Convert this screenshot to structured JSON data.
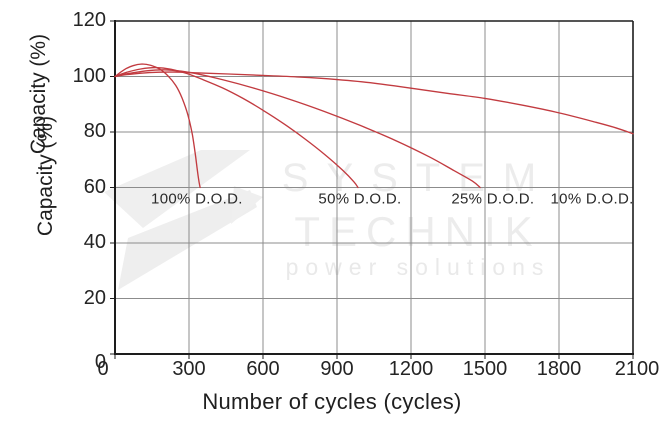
{
  "figure": {
    "background": "#ffffff",
    "watermark": {
      "line1": "SYSTEM",
      "line2": "TECHNIK",
      "line3": "power solutions",
      "logo": "arrow-bolt-logo"
    }
  },
  "chart_data": {
    "type": "line",
    "title": "",
    "xlabel": "Number of cycles (cycles)",
    "ylabel": "Capacity (%)",
    "ylabel_drawn_twice": true,
    "xlim": [
      0,
      2100
    ],
    "ylim": [
      0,
      120
    ],
    "x_ticks": [
      0,
      300,
      600,
      900,
      1200,
      1500,
      1800,
      2100
    ],
    "y_ticks": [
      0,
      20,
      40,
      60,
      80,
      100,
      120
    ],
    "grid": true,
    "legend_position": "inline-annotations",
    "colors": {
      "line": "#c23b40",
      "grid": "#8c8c8c",
      "axis": "#1d1d1d",
      "tick_text": "#242424",
      "annotation_text": "#2a2a2a",
      "watermark": "#ececec"
    },
    "series": [
      {
        "name": "100% D.O.D.",
        "points": [
          [
            0,
            100
          ],
          [
            37,
            102.4
          ],
          [
            73,
            103.9
          ],
          [
            110,
            104.5
          ],
          [
            146,
            104
          ],
          [
            183,
            102.6
          ],
          [
            214,
            100.3
          ],
          [
            246,
            96.8
          ],
          [
            272,
            92.2
          ],
          [
            296,
            86
          ],
          [
            314,
            78.8
          ],
          [
            327,
            71
          ],
          [
            338,
            63.5
          ],
          [
            345,
            60
          ]
        ]
      },
      {
        "name": "50% D.O.D.",
        "points": [
          [
            0,
            100
          ],
          [
            47,
            101.5
          ],
          [
            104,
            102.7
          ],
          [
            166,
            103.2
          ],
          [
            228,
            102.6
          ],
          [
            290,
            101.1
          ],
          [
            353,
            99
          ],
          [
            436,
            95.9
          ],
          [
            519,
            92.1
          ],
          [
            601,
            87.8
          ],
          [
            684,
            83
          ],
          [
            767,
            77.7
          ],
          [
            850,
            71.9
          ],
          [
            923,
            66.2
          ],
          [
            969,
            62
          ],
          [
            985,
            60
          ]
        ]
      },
      {
        "name": "25% D.O.D.",
        "points": [
          [
            0,
            100
          ],
          [
            57,
            101.1
          ],
          [
            124,
            102
          ],
          [
            197,
            102.4
          ],
          [
            269,
            101.9
          ],
          [
            342,
            100.8
          ],
          [
            435,
            98.9
          ],
          [
            559,
            95.9
          ],
          [
            704,
            91.9
          ],
          [
            849,
            87.4
          ],
          [
            993,
            82.4
          ],
          [
            1138,
            76.9
          ],
          [
            1273,
            71.1
          ],
          [
            1376,
            66
          ],
          [
            1449,
            62.3
          ],
          [
            1480,
            60
          ]
        ]
      },
      {
        "name": "10% D.O.D.",
        "points": [
          [
            0,
            100
          ],
          [
            60,
            100.8
          ],
          [
            140,
            101.4
          ],
          [
            240,
            101.6
          ],
          [
            340,
            101.3
          ],
          [
            460,
            100.9
          ],
          [
            600,
            100.4
          ],
          [
            750,
            99.8
          ],
          [
            900,
            98.9
          ],
          [
            1050,
            97.6
          ],
          [
            1200,
            95.8
          ],
          [
            1350,
            93.9
          ],
          [
            1500,
            92.1
          ],
          [
            1650,
            89.7
          ],
          [
            1800,
            86.9
          ],
          [
            1950,
            83.5
          ],
          [
            2030,
            81.5
          ],
          [
            2100,
            79.4
          ]
        ]
      }
    ],
    "annotations": [
      {
        "text": "100% D.O.D.",
        "x": 332,
        "y": 56
      },
      {
        "text": "50% D.O.D.",
        "x": 993,
        "y": 56
      },
      {
        "text": "25% D.O.D.",
        "x": 1532,
        "y": 56
      },
      {
        "text": "10% D.O.D.",
        "x": 1934,
        "y": 56
      }
    ]
  }
}
